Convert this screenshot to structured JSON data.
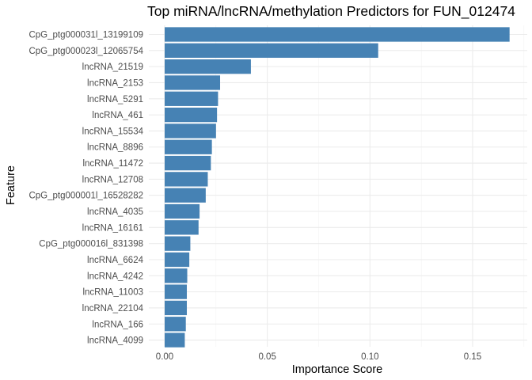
{
  "chart_data": {
    "type": "bar",
    "orientation": "horizontal",
    "title": "Top miRNA/lncRNA/methylation Predictors for FUN_012474",
    "xlabel": "Importance Score",
    "ylabel": "Feature",
    "xlim": [
      0,
      0.17
    ],
    "xticks": [
      0,
      0.05,
      0.1,
      0.15
    ],
    "xtick_labels": [
      "0.00",
      "0.05",
      "0.10",
      "0.15"
    ],
    "grid": true,
    "legend": "none",
    "bar_color": "#4682B4",
    "categories": [
      "CpG_ptg000031l_13199109",
      "CpG_ptg000023l_12065754",
      "lncRNA_21519",
      "lncRNA_2153",
      "lncRNA_5291",
      "lncRNA_461",
      "lncRNA_15534",
      "lncRNA_8896",
      "lncRNA_11472",
      "lncRNA_12708",
      "CpG_ptg000001l_16528282",
      "lncRNA_4035",
      "lncRNA_16161",
      "CpG_ptg000016l_831398",
      "lncRNA_6624",
      "lncRNA_4242",
      "lncRNA_11003",
      "lncRNA_22104",
      "lncRNA_166",
      "lncRNA_4099"
    ],
    "values": [
      0.168,
      0.104,
      0.042,
      0.027,
      0.026,
      0.0255,
      0.025,
      0.023,
      0.0225,
      0.021,
      0.02,
      0.017,
      0.0165,
      0.0125,
      0.012,
      0.011,
      0.0108,
      0.0108,
      0.0103,
      0.0098
    ]
  }
}
